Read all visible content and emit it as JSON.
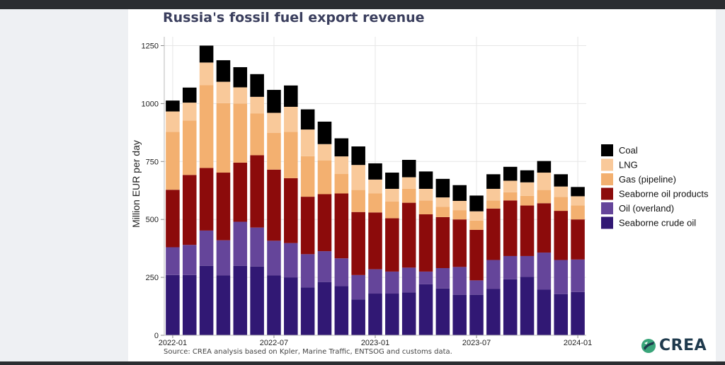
{
  "page": {
    "title": "Russia's fossil fuel export revenue",
    "source": "Source: CREA analysis based on Kpler, Marine Traffic, ENTSOG and customs data.",
    "logo_text": "CREA"
  },
  "colors": {
    "Coal": "#000000",
    "LNG": "#f9c99a",
    "Gas (pipeline)": "#f3b070",
    "Seaborne oil products": "#8c0b0b",
    "Oil (overland)": "#65459a",
    "Seaborne crude oil": "#311874",
    "grid": "#e6e6e6",
    "axis_text": "#222222"
  },
  "chart_data": {
    "type": "bar",
    "stacked": true,
    "title": "Russia's fossil fuel export revenue",
    "xlabel": "",
    "ylabel": "Million EUR per day",
    "ylim": [
      0,
      1300
    ],
    "yticks": [
      0,
      250,
      500,
      750,
      1000,
      1250
    ],
    "xtick_labels": [
      "2022-01",
      "2022-07",
      "2023-01",
      "2023-07",
      "2024-01"
    ],
    "xtick_index": [
      0,
      6,
      12,
      18,
      24
    ],
    "legend_position": "right",
    "categories": [
      "2022-01",
      "2022-02",
      "2022-03",
      "2022-04",
      "2022-05",
      "2022-06",
      "2022-07",
      "2022-08",
      "2022-09",
      "2022-10",
      "2022-11",
      "2022-12",
      "2023-01",
      "2023-02",
      "2023-03",
      "2023-04",
      "2023-05",
      "2023-06",
      "2023-07",
      "2023-08",
      "2023-09",
      "2023-10",
      "2023-11",
      "2023-12",
      "2024-01"
    ],
    "series": [
      {
        "name": "Seaborne crude oil",
        "values": [
          260,
          260,
          300,
          258,
          300,
          297,
          258,
          250,
          207,
          230,
          212,
          155,
          180,
          180,
          185,
          220,
          202,
          175,
          175,
          200,
          242,
          252,
          197,
          178,
          187
        ]
      },
      {
        "name": "Oil (overland)",
        "values": [
          120,
          130,
          152,
          152,
          190,
          168,
          150,
          148,
          143,
          133,
          120,
          105,
          105,
          95,
          107,
          55,
          88,
          120,
          62,
          125,
          100,
          90,
          160,
          147,
          140
        ]
      },
      {
        "name": "Seaborne oil products",
        "values": [
          248,
          302,
          270,
          292,
          255,
          312,
          307,
          280,
          248,
          246,
          280,
          272,
          245,
          230,
          280,
          247,
          220,
          205,
          218,
          222,
          240,
          218,
          213,
          212,
          173
        ]
      },
      {
        "name": "Gas (pipeline)",
        "values": [
          250,
          235,
          358,
          300,
          255,
          180,
          158,
          200,
          175,
          146,
          85,
          95,
          82,
          72,
          60,
          60,
          45,
          40,
          40,
          35,
          35,
          42,
          57,
          60,
          60
        ]
      },
      {
        "name": "LNG",
        "values": [
          88,
          77,
          97,
          92,
          70,
          72,
          87,
          108,
          115,
          70,
          75,
          108,
          60,
          55,
          50,
          50,
          40,
          40,
          40,
          50,
          50,
          58,
          75,
          45,
          40
        ]
      },
      {
        "name": "Coal",
        "values": [
          47,
          65,
          73,
          93,
          87,
          98,
          99,
          92,
          87,
          97,
          78,
          80,
          70,
          70,
          75,
          75,
          80,
          68,
          68,
          63,
          60,
          52,
          50,
          53,
          40
        ]
      }
    ]
  }
}
